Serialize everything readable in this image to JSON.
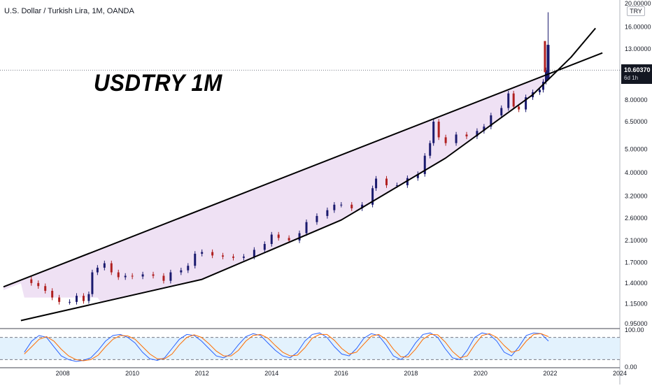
{
  "header": {
    "symbol_title": "U.S. Dollar / Turkish Lira, 1M, OANDA",
    "annotation": "USDTRY 1M",
    "currency": "TRY",
    "last_price": "10.60370",
    "countdown": "6d 1h"
  },
  "colors": {
    "candle_up": "#1a1a6e",
    "candle_down": "#b02020",
    "channel_fill": "#ecdcf2",
    "channel_line": "#000000",
    "k_line": "#2962ff",
    "d_line": "#ff6d00",
    "osc_band": "#e3f2fd"
  },
  "chart_data": [
    {
      "type": "candlestick",
      "title": "U.S. Dollar / Turkish Lira, 1M, OANDA",
      "x_ticks": [
        "2008",
        "2010",
        "2012",
        "2014",
        "2016",
        "2018",
        "2020",
        "2022",
        "2024"
      ],
      "y_ticks": [
        "20.00000",
        "16.00000",
        "13.00000",
        "10.60370",
        "8.00000",
        "6.50000",
        "5.00000",
        "4.00000",
        "3.20000",
        "2.60000",
        "2.10000",
        "1.70000",
        "1.40000",
        "1.15000",
        "0.95000"
      ],
      "y_scale": "log",
      "ylim": [
        0.92,
        20.0
      ],
      "xlim": [
        2006.2,
        2024.0
      ],
      "close_series": [
        [
          2006.9,
          1.45
        ],
        [
          2007.1,
          1.4
        ],
        [
          2007.3,
          1.36
        ],
        [
          2007.5,
          1.3
        ],
        [
          2007.7,
          1.22
        ],
        [
          2007.9,
          1.17
        ],
        [
          2008.2,
          1.17
        ],
        [
          2008.4,
          1.24
        ],
        [
          2008.6,
          1.18
        ],
        [
          2008.75,
          1.26
        ],
        [
          2008.85,
          1.55
        ],
        [
          2009.0,
          1.62
        ],
        [
          2009.2,
          1.69
        ],
        [
          2009.4,
          1.55
        ],
        [
          2009.6,
          1.48
        ],
        [
          2009.8,
          1.5
        ],
        [
          2010.0,
          1.49
        ],
        [
          2010.3,
          1.52
        ],
        [
          2010.6,
          1.5
        ],
        [
          2010.9,
          1.43
        ],
        [
          2011.1,
          1.55
        ],
        [
          2011.4,
          1.58
        ],
        [
          2011.6,
          1.65
        ],
        [
          2011.8,
          1.85
        ],
        [
          2012.0,
          1.88
        ],
        [
          2012.3,
          1.82
        ],
        [
          2012.6,
          1.8
        ],
        [
          2012.9,
          1.78
        ],
        [
          2013.2,
          1.8
        ],
        [
          2013.5,
          1.92
        ],
        [
          2013.8,
          2.03
        ],
        [
          2014.0,
          2.22
        ],
        [
          2014.2,
          2.15
        ],
        [
          2014.5,
          2.1
        ],
        [
          2014.8,
          2.25
        ],
        [
          2015.0,
          2.5
        ],
        [
          2015.3,
          2.65
        ],
        [
          2015.6,
          2.8
        ],
        [
          2015.8,
          2.95
        ],
        [
          2016.0,
          2.95
        ],
        [
          2016.3,
          2.85
        ],
        [
          2016.6,
          2.95
        ],
        [
          2016.9,
          3.45
        ],
        [
          2017.0,
          3.78
        ],
        [
          2017.3,
          3.55
        ],
        [
          2017.6,
          3.55
        ],
        [
          2017.9,
          3.8
        ],
        [
          2018.2,
          3.95
        ],
        [
          2018.4,
          4.7
        ],
        [
          2018.55,
          5.3
        ],
        [
          2018.65,
          6.5
        ],
        [
          2018.8,
          5.6
        ],
        [
          2019.0,
          5.3
        ],
        [
          2019.3,
          5.75
        ],
        [
          2019.6,
          5.65
        ],
        [
          2019.9,
          5.95
        ],
        [
          2020.1,
          6.2
        ],
        [
          2020.3,
          6.9
        ],
        [
          2020.6,
          7.4
        ],
        [
          2020.8,
          8.5
        ],
        [
          2020.95,
          7.5
        ],
        [
          2021.1,
          7.3
        ],
        [
          2021.3,
          8.2
        ],
        [
          2021.5,
          8.6
        ],
        [
          2021.7,
          8.8
        ],
        [
          2021.8,
          9.5
        ],
        [
          2021.88,
          10.6037
        ]
      ],
      "spike": {
        "x": 2021.88,
        "high": 18.4,
        "close": 13.5
      },
      "lines": [
        {
          "name": "upper-channel-line",
          "points": [
            [
              2006.3,
              1.35
            ],
            [
              2023.5,
              12.5
            ]
          ]
        },
        {
          "name": "lower-channel-curve",
          "points": [
            [
              2006.8,
              0.98
            ],
            [
              2012.0,
              1.45
            ],
            [
              2016.0,
              2.55
            ],
            [
              2019.0,
              4.6
            ],
            [
              2021.5,
              8.4
            ],
            [
              2022.6,
              12.0
            ],
            [
              2023.3,
              15.8
            ]
          ]
        }
      ],
      "current_price_line": 10.6037
    },
    {
      "type": "line",
      "name": "stochastic-oscillator",
      "y_ticks": [
        "100.00",
        "0.00"
      ],
      "ylim": [
        0,
        100
      ],
      "band": [
        20,
        80
      ],
      "series": [
        {
          "color": "#2962ff",
          "values": [
            40,
            70,
            85,
            80,
            55,
            30,
            20,
            15,
            18,
            25,
            45,
            70,
            85,
            88,
            80,
            65,
            40,
            22,
            18,
            25,
            50,
            75,
            88,
            85,
            70,
            50,
            30,
            25,
            35,
            60,
            82,
            90,
            85,
            65,
            45,
            30,
            25,
            40,
            70,
            88,
            92,
            80,
            55,
            35,
            30,
            50,
            78,
            90,
            85,
            60,
            30,
            20,
            35,
            65,
            88,
            92,
            80,
            50,
            25,
            20,
            45,
            80,
            92,
            88,
            70,
            40,
            30,
            55,
            85,
            92,
            90,
            70
          ]
        },
        {
          "color": "#ff6d00",
          "values": [
            35,
            55,
            75,
            82,
            70,
            48,
            30,
            20,
            17,
            20,
            32,
            55,
            75,
            85,
            84,
            75,
            55,
            35,
            22,
            22,
            35,
            60,
            80,
            87,
            80,
            63,
            43,
            30,
            30,
            45,
            70,
            85,
            88,
            78,
            58,
            40,
            30,
            32,
            52,
            78,
            88,
            88,
            72,
            50,
            35,
            40,
            62,
            83,
            88,
            75,
            48,
            28,
            27,
            48,
            75,
            88,
            87,
            68,
            42,
            25,
            30,
            60,
            85,
            90,
            80,
            58,
            40,
            45,
            70,
            88,
            90,
            82
          ]
        }
      ]
    }
  ]
}
